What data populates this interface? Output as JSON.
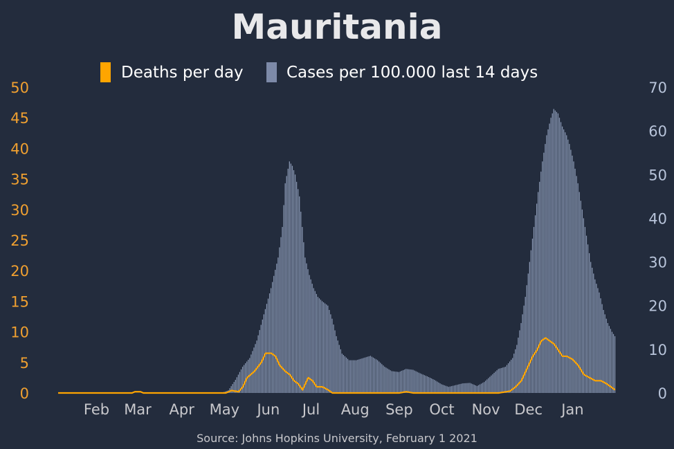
{
  "chart_data": {
    "type": "bar",
    "title": "Mauritania",
    "source": "Source: Johns Hopkins University, February 1 2021",
    "legend": [
      {
        "label": "Deaths per day",
        "color": "#ffa500",
        "marker": "line"
      },
      {
        "label": "Cases per 100.000 last 14 days",
        "color": "#8da0c4",
        "marker": "bar"
      }
    ],
    "legend_position": "top",
    "x_labels": [
      "Feb",
      "Mar",
      "Apr",
      "May",
      "Jun",
      "Jul",
      "Aug",
      "Sep",
      "Oct",
      "Nov",
      "Dec",
      "Jan"
    ],
    "left_axis": {
      "ylim": [
        0,
        50
      ],
      "ticks": [
        "0",
        "5",
        "10",
        "15",
        "20",
        "25",
        "30",
        "35",
        "40",
        "45",
        "50"
      ],
      "color": "#f0a030"
    },
    "right_axis": {
      "ylim": [
        0,
        70
      ],
      "ticks": [
        "0",
        "10",
        "20",
        "30",
        "40",
        "50",
        "60",
        "70"
      ],
      "color": "#b8c4da"
    },
    "bar_series": {
      "name": "Cases per 100.000 last 14 days",
      "axis": "right",
      "color": "#8d9cb8",
      "knots": [
        [
          0,
          0
        ],
        [
          115,
          0
        ],
        [
          120,
          0.6
        ],
        [
          125,
          3
        ],
        [
          130,
          6
        ],
        [
          135,
          8
        ],
        [
          140,
          12
        ],
        [
          145,
          18
        ],
        [
          150,
          24
        ],
        [
          155,
          31
        ],
        [
          158,
          38
        ],
        [
          160,
          48
        ],
        [
          163,
          53
        ],
        [
          165,
          52
        ],
        [
          167,
          50
        ],
        [
          170,
          45
        ],
        [
          172,
          38
        ],
        [
          174,
          31
        ],
        [
          177,
          27
        ],
        [
          180,
          24
        ],
        [
          183,
          22
        ],
        [
          186,
          21
        ],
        [
          190,
          20
        ],
        [
          193,
          17
        ],
        [
          196,
          13
        ],
        [
          200,
          9
        ],
        [
          205,
          7.5
        ],
        [
          210,
          7.5
        ],
        [
          215,
          8
        ],
        [
          220,
          8.5
        ],
        [
          225,
          7.5
        ],
        [
          230,
          6
        ],
        [
          235,
          5
        ],
        [
          240,
          4.8
        ],
        [
          245,
          5.5
        ],
        [
          250,
          5.3
        ],
        [
          255,
          4.5
        ],
        [
          260,
          3.8
        ],
        [
          265,
          3
        ],
        [
          270,
          2
        ],
        [
          275,
          1.4
        ],
        [
          280,
          1.8
        ],
        [
          285,
          2.2
        ],
        [
          290,
          2.3
        ],
        [
          295,
          1.6
        ],
        [
          300,
          2.5
        ],
        [
          305,
          4
        ],
        [
          310,
          5.5
        ],
        [
          315,
          6
        ],
        [
          320,
          8
        ],
        [
          323,
          11
        ],
        [
          326,
          16
        ],
        [
          329,
          22
        ],
        [
          332,
          30
        ],
        [
          335,
          38
        ],
        [
          338,
          46
        ],
        [
          341,
          53
        ],
        [
          344,
          59
        ],
        [
          347,
          63
        ],
        [
          349,
          65
        ],
        [
          352,
          64
        ],
        [
          355,
          61
        ],
        [
          358,
          59
        ],
        [
          360,
          57
        ],
        [
          363,
          53
        ],
        [
          366,
          48
        ],
        [
          369,
          42
        ],
        [
          372,
          36
        ],
        [
          375,
          30
        ],
        [
          378,
          26
        ],
        [
          381,
          23
        ],
        [
          384,
          19
        ],
        [
          387,
          16
        ],
        [
          390,
          14
        ],
        [
          392,
          13
        ]
      ]
    },
    "line_series": {
      "name": "Deaths per day",
      "axis": "left",
      "color": "#ffa500",
      "knots": [
        [
          0,
          0
        ],
        [
          52,
          0
        ],
        [
          54,
          0.2
        ],
        [
          58,
          0.2
        ],
        [
          60,
          0
        ],
        [
          118,
          0
        ],
        [
          122,
          0.4
        ],
        [
          127,
          0.2
        ],
        [
          130,
          1
        ],
        [
          133,
          2.5
        ],
        [
          138,
          3.5
        ],
        [
          143,
          5
        ],
        [
          146,
          6.5
        ],
        [
          150,
          6.5
        ],
        [
          153,
          6
        ],
        [
          156,
          4.5
        ],
        [
          160,
          3.5
        ],
        [
          163,
          3
        ],
        [
          166,
          2
        ],
        [
          169,
          1.5
        ],
        [
          172,
          0.5
        ],
        [
          176,
          2.5
        ],
        [
          179,
          2
        ],
        [
          182,
          1
        ],
        [
          186,
          1
        ],
        [
          190,
          0.5
        ],
        [
          193,
          0
        ],
        [
          240,
          0
        ],
        [
          245,
          0.2
        ],
        [
          250,
          0
        ],
        [
          310,
          0
        ],
        [
          318,
          0.3
        ],
        [
          322,
          1
        ],
        [
          326,
          2
        ],
        [
          330,
          4
        ],
        [
          334,
          6
        ],
        [
          337,
          7
        ],
        [
          340,
          8.5
        ],
        [
          343,
          9
        ],
        [
          346,
          8.5
        ],
        [
          349,
          8
        ],
        [
          352,
          7
        ],
        [
          355,
          6
        ],
        [
          358,
          6
        ],
        [
          362,
          5.5
        ],
        [
          366,
          4.5
        ],
        [
          370,
          3
        ],
        [
          374,
          2.5
        ],
        [
          378,
          2
        ],
        [
          382,
          2
        ],
        [
          386,
          1.5
        ],
        [
          389,
          1
        ],
        [
          392,
          0.5
        ]
      ]
    }
  }
}
